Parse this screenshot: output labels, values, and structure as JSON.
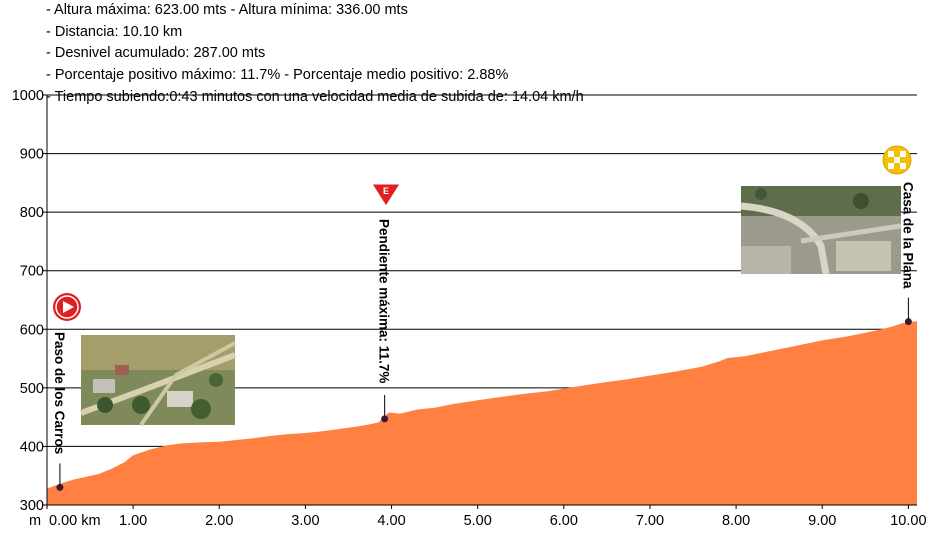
{
  "stats": [
    "- Altura máxima: 623.00 mts - Altura mínima: 336.00 mts",
    "- Distancia: 10.10 km",
    "- Desnivel acumulado: 287.00 mts",
    "- Porcentaje positivo máximo: 11.7% - Porcentaje medio positivo: 2.88%",
    "- Tiempo subiendo:0:43 minutos con una velocidad media de subida de: 14.04 km/h"
  ],
  "colors": {
    "fill": "#ff8040",
    "marker": "#3a1a33",
    "start_icon": "#e02020",
    "gradient_icon": "#e02020",
    "finish_icon": "#f5c000"
  },
  "chart_data": {
    "type": "area",
    "title": "",
    "xlabel": "",
    "ylabel": "",
    "x_unit_label": "m",
    "xlim": [
      0,
      10.1
    ],
    "ylim": [
      300,
      1000
    ],
    "y_ticks": [
      "1000",
      "900",
      "800",
      "700",
      "600",
      "500",
      "400",
      "300"
    ],
    "x_ticks": [
      "0.00 km",
      "1.00",
      "2.00",
      "3.00",
      "4.00",
      "5.00",
      "6.00",
      "7.00",
      "8.00",
      "9.00",
      "10.00"
    ],
    "grid": true,
    "series": [
      {
        "x": [
          0.0,
          0.15,
          0.3,
          0.45,
          0.6,
          0.75,
          0.9,
          1.0,
          1.2,
          1.4,
          1.55,
          1.8,
          2.0,
          2.2,
          2.4,
          2.6,
          2.8,
          3.0,
          3.2,
          3.4,
          3.6,
          3.75,
          3.85,
          3.92,
          3.97,
          4.1,
          4.3,
          4.5,
          4.7,
          5.0,
          5.3,
          5.5,
          5.8,
          6.1,
          6.4,
          6.7,
          7.0,
          7.3,
          7.6,
          7.8,
          7.9,
          8.1,
          8.4,
          8.7,
          9.0,
          9.3,
          9.6,
          9.8,
          9.95,
          10.1
        ],
        "y": [
          328,
          336,
          343,
          348,
          353,
          362,
          373,
          385,
          395,
          402,
          405,
          407,
          408,
          411,
          414,
          418,
          421,
          423,
          426,
          430,
          434,
          438,
          441,
          452,
          458,
          456,
          463,
          466,
          472,
          479,
          485,
          489,
          494,
          501,
          508,
          514,
          521,
          528,
          536,
          545,
          551,
          554,
          563,
          572,
          581,
          588,
          597,
          604,
          611,
          614
        ]
      }
    ],
    "annotations": [
      {
        "label": "Paso de los Carros",
        "x": 0.15,
        "y": 330
      },
      {
        "label": "Pendiente máxima: 11.7%",
        "x": 3.92,
        "y": 447
      },
      {
        "label": "Casa de la Plana",
        "x": 10.0,
        "y": 613
      }
    ],
    "icons": {
      "start": "start-play-icon",
      "gradient": "max-gradient-e-icon",
      "finish": "finish-checkered-icon"
    }
  }
}
